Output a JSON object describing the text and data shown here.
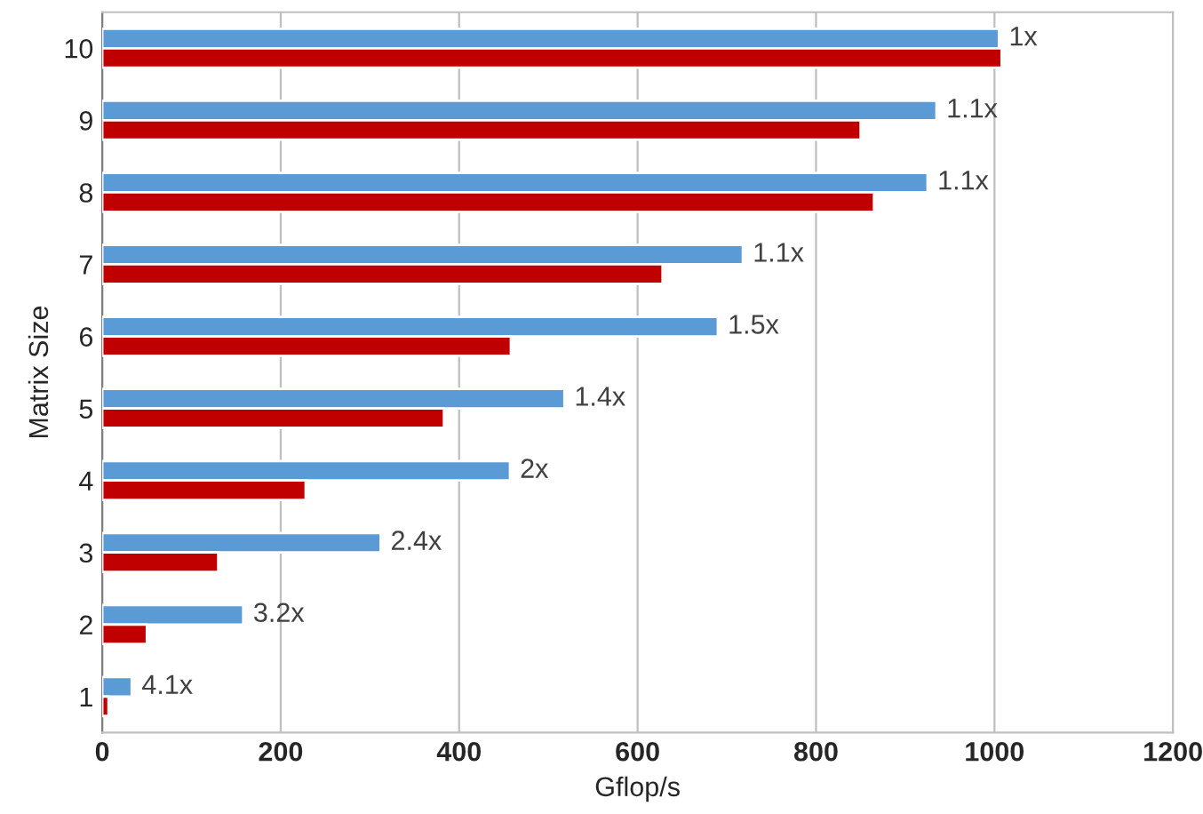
{
  "chart_data": {
    "type": "bar",
    "orientation": "horizontal",
    "xlabel": "Gflop/s",
    "ylabel": "Matrix Size",
    "categories": [
      "10",
      "9",
      "8",
      "7",
      "6",
      "5",
      "4",
      "3",
      "2",
      "1"
    ],
    "series": [
      {
        "color": "#5b9bd5",
        "values": [
          1005,
          935,
          925,
          718,
          690,
          518,
          457,
          312,
          158,
          33
        ]
      },
      {
        "color": "#c00000",
        "values": [
          1008,
          850,
          865,
          628,
          458,
          383,
          228,
          130,
          50,
          7
        ]
      }
    ],
    "xlim": [
      0,
      1200
    ],
    "xticks": [
      0,
      200,
      400,
      600,
      800,
      1000,
      1200
    ],
    "grid": "x",
    "annotations": [
      {
        "text": "1x",
        "x": 1005,
        "y": "10"
      },
      {
        "text": "1.1x",
        "x": 935,
        "y": "9"
      },
      {
        "text": "1.1x",
        "x": 925,
        "y": "8"
      },
      {
        "text": "1.1x",
        "x": 718,
        "y": "7"
      },
      {
        "text": "1.5x",
        "x": 690,
        "y": "6"
      },
      {
        "text": "1.4x",
        "x": 518,
        "y": "5"
      },
      {
        "text": "2x",
        "x": 457,
        "y": "4"
      },
      {
        "text": "2.4x",
        "x": 312,
        "y": "3"
      },
      {
        "text": "3.2x",
        "x": 158,
        "y": "2"
      },
      {
        "text": "4.1x",
        "x": 33,
        "y": "1"
      }
    ]
  }
}
